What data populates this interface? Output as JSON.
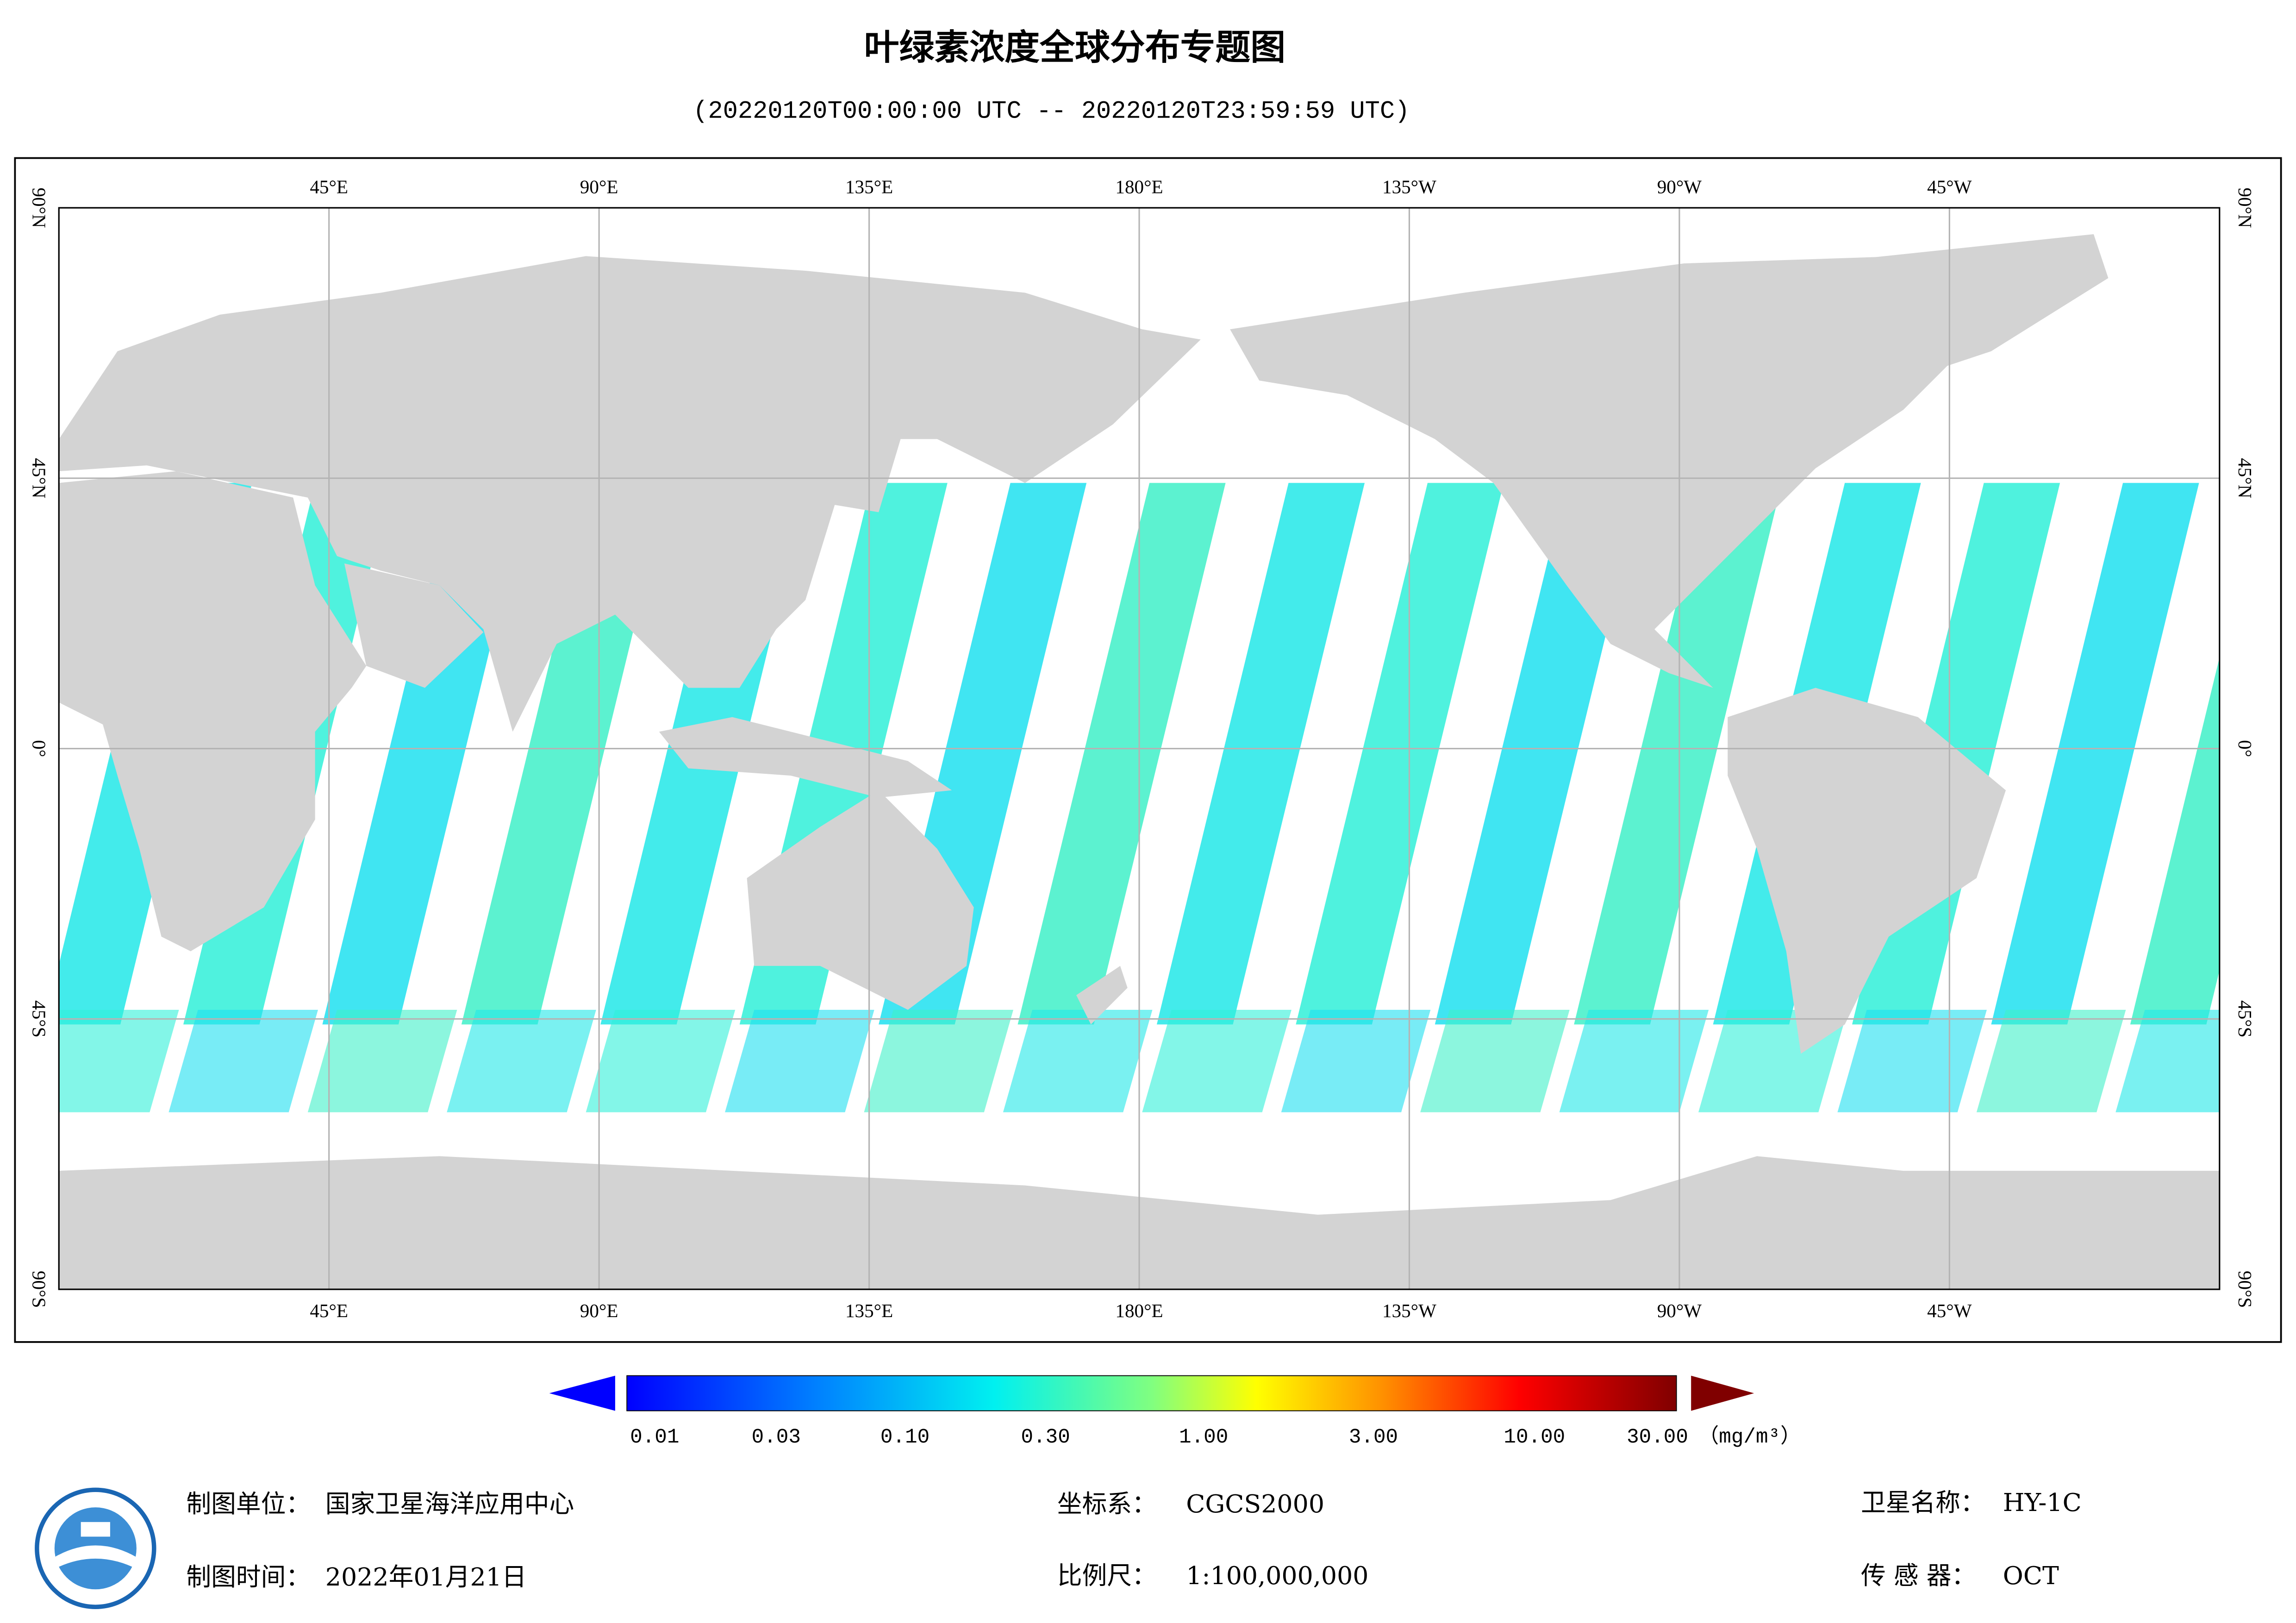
{
  "header": {
    "title": "叶绿素浓度全球分布专题图",
    "subtitle": "(20220120T00:00:00 UTC -- 20220120T23:59:59 UTC)"
  },
  "map": {
    "longitude_labels": [
      "45°E",
      "90°E",
      "135°E",
      "180°E",
      "135°W",
      "90°W",
      "45°W"
    ],
    "latitude_labels": [
      "90°N",
      "45°N",
      "0°",
      "45°S",
      "90°S"
    ]
  },
  "colorbar": {
    "tick_labels": [
      "0.01",
      "0.03",
      "0.10",
      "0.30",
      "1.00",
      "3.00",
      "10.00",
      "30.00"
    ],
    "unit": "（mg/m³）"
  },
  "footer": {
    "unit_label": "制图单位：",
    "unit_value": "国家卫星海洋应用中心",
    "time_label": "制图时间：",
    "time_value": "2022年01月21日",
    "crs_label": "坐标系：",
    "crs_value": "CGCS2000",
    "scale_label": "比例尺：",
    "scale_value": "1:100,000,000",
    "satellite_label": "卫星名称：",
    "satellite_value": "HY-1C",
    "sensor_label": "传 感 器：",
    "sensor_value": "OCT"
  }
}
